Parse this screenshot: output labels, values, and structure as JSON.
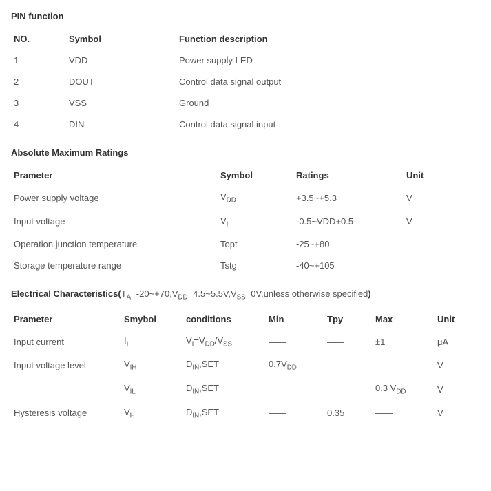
{
  "pin_function": {
    "title": "PIN function",
    "columns": [
      "NO.",
      "Symbol",
      "Function description"
    ],
    "rows": [
      [
        "1",
        "VDD",
        "Power supply LED"
      ],
      [
        "2",
        "DOUT",
        "Control data signal output"
      ],
      [
        "3",
        "VSS",
        "Ground"
      ],
      [
        "4",
        "DIN",
        "Control data signal input"
      ]
    ],
    "col_widths": [
      "80px",
      "160px",
      "auto"
    ]
  },
  "abs_max": {
    "title": "Absolute Maximum Ratings",
    "columns": [
      "Prameter",
      "Symbol",
      "Ratings",
      "Unit"
    ],
    "rows": [
      {
        "param": "Power supply voltage",
        "symbol_html": "V<sub>DD</sub>",
        "ratings": "+3.5~+5.3",
        "unit": "V"
      },
      {
        "param": "Input voltage",
        "symbol_html": "V<sub>I</sub>",
        "ratings": "-0.5~VDD+0.5",
        "unit": "V"
      },
      {
        "param": "Operation junction temperature",
        "symbol_html": "Topt",
        "ratings": "-25~+80",
        "unit": ""
      },
      {
        "param": "Storage temperature range",
        "symbol_html": "Tstg",
        "ratings": "-40~+105",
        "unit": ""
      }
    ],
    "col_widths": [
      "300px",
      "110px",
      "160px",
      "auto"
    ]
  },
  "elec": {
    "title_prefix": "Electrical Characteristics(",
    "title_cond_html": "T<sub>A</sub>=-20~+70,V<sub>DD</sub>=4.5~5.5V,V<sub>SS</sub>=0V,unless otherwise specified",
    "title_suffix": ")",
    "columns": [
      "Prameter",
      "Smybol",
      "conditions",
      "Min",
      "Tpy",
      "Max",
      "Unit"
    ],
    "dash": "——",
    "rows": [
      {
        "param": "Input current",
        "symbol_html": "I<sub>I</sub>",
        "cond_html": "V<sub>I</sub>=V<sub>DD</sub>/V<sub>SS</sub>",
        "min": "——",
        "typ": "——",
        "max": "±1",
        "unit": "μA"
      },
      {
        "param": "Input voltage level",
        "symbol_html": "V<sub>IH</sub>",
        "cond_html": "D<sub>IN</sub>,SET",
        "min_html": "0.7V<sub>DD</sub>",
        "typ": "——",
        "max": "——",
        "unit": "V"
      },
      {
        "param": "",
        "symbol_html": "V<sub>IL</sub>",
        "cond_html": "D<sub>IN</sub>,SET",
        "min": "——",
        "typ": "——",
        "max_html": "0.3 V<sub>DD</sub>",
        "unit": "V"
      },
      {
        "param": "Hysteresis voltage",
        "symbol_html": "V<sub>H</sub>",
        "cond_html": "D<sub>IN</sub>,SET",
        "min": "——",
        "typ": "0.35",
        "max": "——",
        "unit": "V"
      }
    ],
    "col_widths": [
      "160px",
      "90px",
      "120px",
      "85px",
      "70px",
      "90px",
      "auto"
    ]
  }
}
